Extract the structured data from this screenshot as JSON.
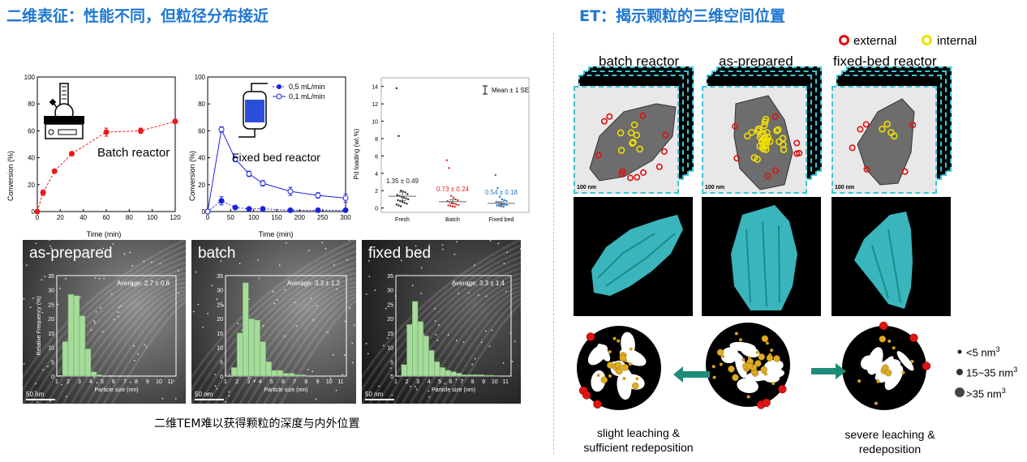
{
  "headings": {
    "left": "二维表征：性能不同，但粒径分布接近",
    "right": "ET：揭示颗粒的三维空间位置"
  },
  "conversion_batch": {
    "ylabel": "Conversion (%)",
    "xlabel": "Time (min)",
    "xticks": [
      "0",
      "20",
      "40",
      "60",
      "80",
      "100",
      "120"
    ],
    "yticks": [
      "0",
      "20",
      "40",
      "60",
      "80",
      "100"
    ],
    "annotation": "Batch reactor",
    "icon": "batch-reactor-flask-icon"
  },
  "conversion_fixed": {
    "ylabel": "Conversion (%)",
    "xlabel": "Time (min)",
    "xticks": [
      "0",
      "50",
      "100",
      "150",
      "200",
      "250",
      "300"
    ],
    "yticks": [
      "0",
      "20",
      "40",
      "60",
      "80",
      "100"
    ],
    "annotation": "Fixed bed reactor",
    "icon": "fixed-bed-column-icon",
    "legend": [
      "0,5 mL/min",
      "0,1 mL/min"
    ]
  },
  "pd_loading": {
    "ylabel": "Pd loading (wt.%)",
    "yticks": [
      "0",
      "2",
      "4",
      "6",
      "8",
      "10",
      "12",
      "14"
    ],
    "categories": [
      "Fresh",
      "Batch",
      "Fixed bed"
    ],
    "legend": "Mean ± 1 SE",
    "means_text": [
      "1.35 ± 0.49",
      "0.73 ± 0.24",
      "0.54 ± 0.18"
    ],
    "colors": [
      "#222222",
      "#e0201b",
      "#1b72c8"
    ]
  },
  "tem": [
    {
      "label": "as-prepared",
      "average": "Average: 2.7 ± 0.6",
      "scale": "50 nm",
      "ylabel": "Relative Frequency (%)",
      "xlabel": "Particle size (nm)"
    },
    {
      "label": "batch",
      "average": "Average: 3.3 ± 1.2",
      "scale": "50 nm",
      "ylabel": "",
      "xlabel": "Particle size (nm)"
    },
    {
      "label": "fixed bed",
      "average": "Average: 3.3 ± 1.4",
      "scale": "50 nm",
      "ylabel": "",
      "xlabel": "Particle size (nm)"
    }
  ],
  "hist_xticks": [
    "1",
    "2",
    "3",
    "4",
    "5",
    "6",
    "7",
    "8",
    "9",
    "10",
    "11"
  ],
  "hist_yticks": [
    "0",
    "5",
    "10",
    "15",
    "20",
    "25",
    "30",
    "35"
  ],
  "tem_caption": "二维TEM难以获得颗粒的深度与内外位置",
  "et_legend": {
    "external": "external",
    "internal": "internal",
    "external_color": "#e01010",
    "internal_color": "#f0e000"
  },
  "et_columns": [
    "batch reactor",
    "as-prepared",
    "fixed-bed reactor"
  ],
  "et_scale": "100 nm",
  "size_legend": [
    {
      "text": "<5 nm",
      "sup": "3"
    },
    {
      "text": "15~35 nm",
      "sup": "3"
    },
    {
      "text": ">35 nm",
      "sup": "3"
    }
  ],
  "scheme_captions": {
    "left_line1": "slight leaching &",
    "left_line2": "sufficient redeposition",
    "right_line1": "severe leaching &",
    "right_line2": "redeposition"
  },
  "chart_data": [
    {
      "type": "line",
      "title": "",
      "xlabel": "Time (min)",
      "ylabel": "Conversion (%)",
      "xlim": [
        0,
        120
      ],
      "ylim": [
        0,
        100
      ],
      "series": [
        {
          "name": "Batch reactor",
          "x": [
            0,
            5,
            15,
            30,
            60,
            90,
            120
          ],
          "y": [
            0,
            14,
            30,
            43,
            59,
            60,
            67
          ],
          "err": [
            0.5,
            2,
            1.5,
            1.5,
            3,
            2,
            1.5
          ]
        }
      ]
    },
    {
      "type": "line",
      "title": "",
      "xlabel": "Time (min)",
      "ylabel": "Conversion (%)",
      "xlim": [
        0,
        300
      ],
      "ylim": [
        0,
        100
      ],
      "series": [
        {
          "name": "0,5 mL/min",
          "x": [
            0,
            30,
            60,
            90,
            120,
            180,
            240,
            300
          ],
          "y": [
            0,
            8,
            3,
            2,
            2,
            1,
            1,
            1
          ],
          "err": [
            0,
            3,
            1,
            1,
            1,
            1,
            1,
            1
          ]
        },
        {
          "name": "0,1 mL/min",
          "x": [
            0,
            30,
            60,
            90,
            120,
            180,
            240,
            300
          ],
          "y": [
            0,
            61,
            39,
            28,
            21,
            15,
            12,
            10
          ],
          "err": [
            0,
            2,
            2,
            2,
            2,
            3,
            2,
            3
          ]
        }
      ]
    },
    {
      "type": "scatter",
      "title": "",
      "xlabel": "",
      "ylabel": "Pd loading (wt.%)",
      "ylim": [
        -0.5,
        15
      ],
      "categories": [
        "Fresh",
        "Batch",
        "Fixed bed"
      ],
      "means": [
        1.35,
        0.73,
        0.54
      ],
      "se": [
        0.49,
        0.24,
        0.18
      ],
      "points": [
        [
          13.8,
          8.3,
          2.0,
          1.9,
          1.8,
          1.6,
          1.5,
          1.4,
          1.3,
          1.2,
          1.1,
          1.0,
          0.9,
          0.8,
          0.7,
          0.6,
          0.5,
          0.4,
          0.3,
          0.2
        ],
        [
          5.5,
          4.6,
          1.4,
          1.2,
          1.0,
          0.9,
          0.8,
          0.7,
          0.6,
          0.5,
          0.4,
          0.35,
          0.3,
          0.25,
          0.2,
          0.15
        ],
        [
          3.8,
          2.3,
          1.3,
          1.0,
          0.9,
          0.8,
          0.7,
          0.6,
          0.5,
          0.45,
          0.4,
          0.35,
          0.3,
          0.25,
          0.2,
          0.15
        ]
      ]
    },
    {
      "type": "bar",
      "title": "",
      "xlabel": "Particle size (nm)",
      "ylabel": "Relative Frequency (%)",
      "ylim": [
        0,
        35
      ],
      "bin_width": 0.5,
      "bin_start": [
        1.5,
        2.0,
        2.5,
        3.0,
        3.5,
        4.0,
        4.5
      ],
      "values": [
        12,
        28.5,
        28,
        21,
        9.5,
        1.5,
        0.5
      ],
      "average": "2.7 ± 0.6"
    },
    {
      "type": "bar",
      "title": "",
      "xlabel": "Particle size (nm)",
      "ylabel": "",
      "ylim": [
        0,
        35
      ],
      "bin_width": 0.5,
      "bin_start": [
        1.5,
        2.0,
        2.5,
        3.0,
        3.5,
        4.0,
        4.5,
        5.0,
        5.5,
        6.0,
        6.5,
        7.0,
        7.5
      ],
      "values": [
        3,
        15,
        32.5,
        20,
        19.5,
        12,
        5,
        2,
        2,
        1,
        1,
        0.5,
        0.5
      ],
      "average": "3.3 ± 1.2"
    },
    {
      "type": "bar",
      "title": "",
      "xlabel": "Particle size (nm)",
      "ylabel": "",
      "ylim": [
        0,
        35
      ],
      "bin_width": 0.5,
      "bin_start": [
        1.5,
        2.0,
        2.5,
        3.0,
        3.5,
        4.0,
        4.5,
        5.0,
        5.5,
        6.0,
        6.5,
        7.0,
        7.5,
        8.0,
        8.5,
        9.0,
        9.5,
        10.0
      ],
      "values": [
        4,
        18,
        26,
        19,
        14,
        9,
        5,
        3,
        2,
        1.5,
        1,
        0.5,
        0.5,
        0.5,
        0.5,
        0.3,
        0.3,
        0.2
      ],
      "average": "3.3 ± 1.4"
    }
  ]
}
